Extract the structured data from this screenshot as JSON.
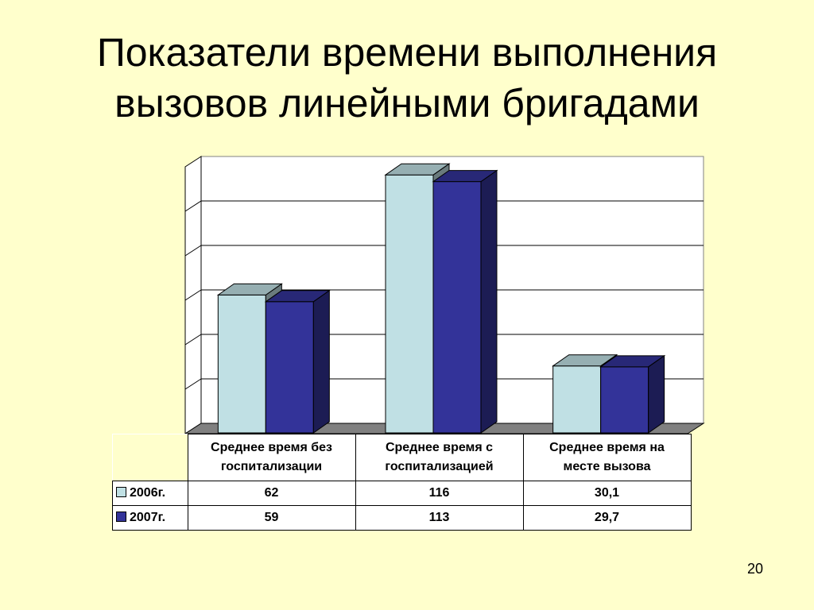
{
  "slide": {
    "title_line1": "Показатели времени выполнения",
    "title_line2": "вызовов линейными бригадами",
    "page_number": "20"
  },
  "colors": {
    "background": "#ffffcc",
    "series_2006": "#c0e0e4",
    "series_2007": "#333399"
  },
  "chart_data": {
    "type": "bar",
    "categories": [
      "Среднее время без госпитализации",
      "Среднее время с госпитализацией",
      "Среднее время на месте вызова"
    ],
    "category_lines": [
      [
        "Среднее время без",
        "госпитализации"
      ],
      [
        "Среднее время с",
        "госпитализацией"
      ],
      [
        "Среднее время на",
        "месте вызова"
      ]
    ],
    "series": [
      {
        "name": "2006г.",
        "values": [
          62,
          116,
          30.1
        ],
        "labels": [
          "62",
          "116",
          "30,1"
        ],
        "color": "#c0e0e4"
      },
      {
        "name": "2007г.",
        "values": [
          59,
          113,
          29.7
        ],
        "labels": [
          "59",
          "113",
          "29,7"
        ],
        "color": "#333399"
      }
    ],
    "ylim": [
      0,
      120
    ],
    "grid": true,
    "three_d": true,
    "legend": "data-table"
  }
}
